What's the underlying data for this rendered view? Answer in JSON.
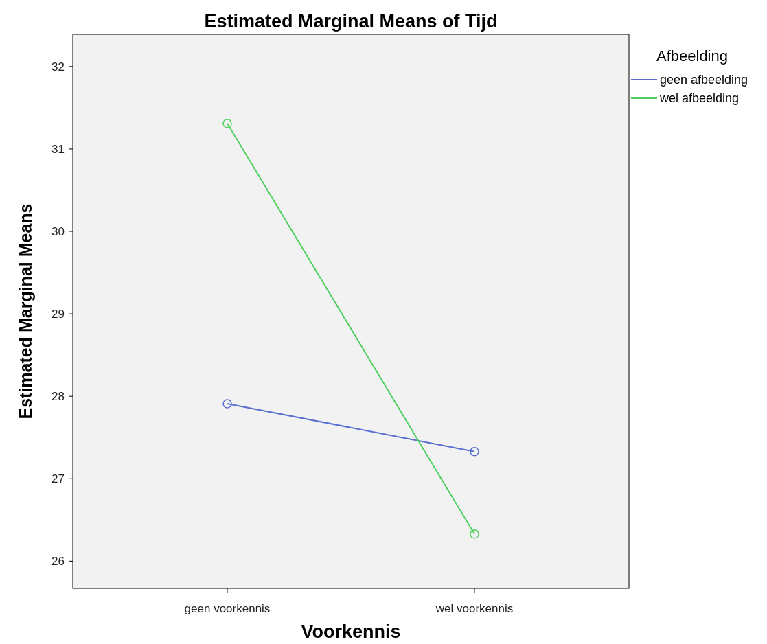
{
  "chart_data": {
    "type": "line",
    "title": "Estimated Marginal Means of Tijd",
    "xlabel": "Voorkennis",
    "ylabel": "Estimated Marginal Means",
    "legend_title": "Afbeelding",
    "categories": [
      "geen voorkennis",
      "wel voorkennis"
    ],
    "series": [
      {
        "name": "geen afbeelding",
        "color": "#5a6fd0",
        "values": [
          27.91,
          27.33
        ]
      },
      {
        "name": "wel afbeelding",
        "color": "#4fd05e",
        "values": [
          31.31,
          26.33
        ]
      }
    ],
    "ylim": [
      25.67,
      32.39
    ],
    "yticks": [
      26,
      27,
      28,
      29,
      30,
      31,
      32
    ],
    "marker": "circle",
    "legend": "top right",
    "grid": false
  }
}
